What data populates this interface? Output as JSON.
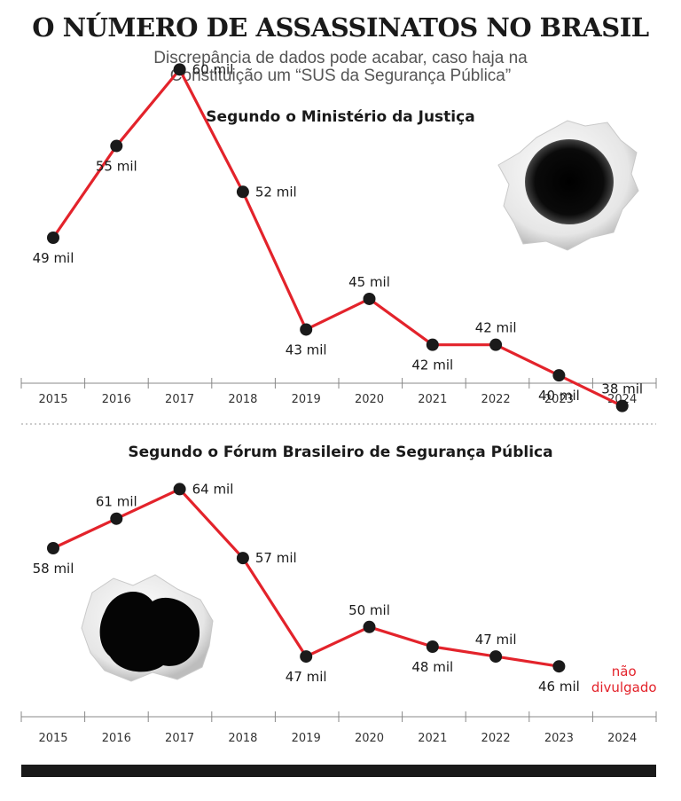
{
  "header": {
    "title": "O NÚMERO DE ASSASSINATOS NO BRASIL",
    "subtitle_line1": "Discrepância de dados pode acabar, caso haja na",
    "subtitle_line2": "Constituição um “SUS da Segurança Pública”"
  },
  "colors": {
    "line": "#e3232b",
    "point": "#1a1a1a",
    "axis": "#888888",
    "note": "#e3232b",
    "footer_bar": "#1a1a1a"
  },
  "icons": [
    "bullet-hole-icon"
  ],
  "chart_data": [
    {
      "type": "line",
      "title": "Segundo o Ministério da Justiça",
      "categories": [
        "2015",
        "2016",
        "2017",
        "2018",
        "2019",
        "2020",
        "2021",
        "2022",
        "2023",
        "2024"
      ],
      "values": [
        49,
        55,
        60,
        52,
        43,
        45,
        42,
        42,
        40,
        38
      ],
      "labels": [
        "49 mil",
        "55 mil",
        "60 mil",
        "52 mil",
        "43 mil",
        "45 mil",
        "42 mil",
        "42 mil",
        "40 mil",
        "38 mil"
      ],
      "unit": "mil"
    },
    {
      "type": "line",
      "title": "Segundo o Fórum Brasileiro de Segurança Pública",
      "categories": [
        "2015",
        "2016",
        "2017",
        "2018",
        "2019",
        "2020",
        "2021",
        "2022",
        "2023",
        "2024"
      ],
      "values": [
        58,
        61,
        64,
        57,
        47,
        50,
        48,
        47,
        46,
        null
      ],
      "labels": [
        "58 mil",
        "61 mil",
        "64 mil",
        "57 mil",
        "47 mil",
        "50 mil",
        "48 mil",
        "47 mil",
        "46 mil",
        ""
      ],
      "note": [
        "não",
        "divulgado"
      ],
      "unit": "mil"
    }
  ]
}
